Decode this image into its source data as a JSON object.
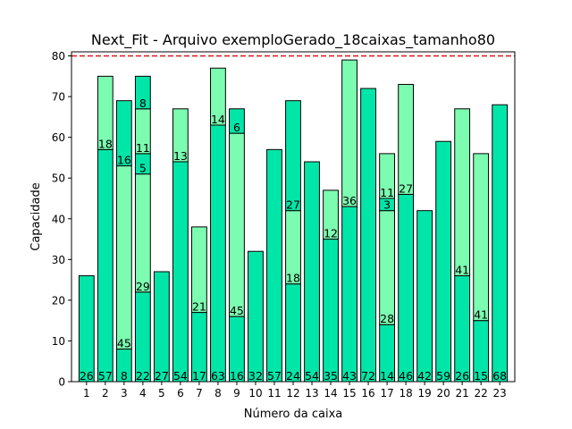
{
  "chart_data": {
    "type": "bar",
    "title": "Next_Fit - Arquivo exemploGerado_18caixas_tamanho80",
    "xlabel": "Número da caixa",
    "ylabel": "Capacidade",
    "ylim": [
      0,
      81
    ],
    "yticks": [
      0,
      10,
      20,
      30,
      40,
      50,
      60,
      70,
      80
    ],
    "capacity_line": 80,
    "grid": false,
    "colors": {
      "segment_a": "#00e6a8",
      "segment_b": "#7cfcb0",
      "edge": "#000000",
      "capacity_line": "#d62728"
    },
    "categories": [
      "1",
      "2",
      "3",
      "4",
      "5",
      "6",
      "7",
      "8",
      "9",
      "10",
      "11",
      "12",
      "13",
      "14",
      "15",
      "16",
      "17",
      "18",
      "19",
      "20",
      "21",
      "22",
      "23"
    ],
    "stacks": [
      [
        26
      ],
      [
        57,
        18
      ],
      [
        8,
        45,
        16
      ],
      [
        22,
        29,
        5,
        11,
        8
      ],
      [
        27
      ],
      [
        54,
        13
      ],
      [
        17,
        21
      ],
      [
        63,
        14
      ],
      [
        16,
        45,
        6
      ],
      [
        32
      ],
      [
        57
      ],
      [
        24,
        18,
        27
      ],
      [
        54
      ],
      [
        35,
        12
      ],
      [
        43,
        36
      ],
      [
        72
      ],
      [
        14,
        28,
        3,
        11
      ],
      [
        46,
        27
      ],
      [
        42
      ],
      [
        59
      ],
      [
        26,
        41
      ],
      [
        15,
        41
      ],
      [
        68
      ]
    ]
  }
}
